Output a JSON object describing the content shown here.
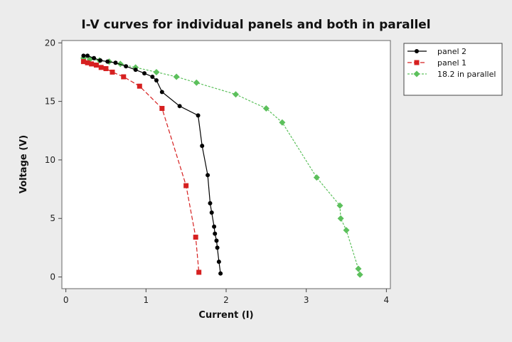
{
  "chart_data": {
    "type": "line",
    "title": "I-V curves for individual panels and both in parallel",
    "xlabel": "Current (I)",
    "ylabel": "Voltage (V)",
    "xlim": [
      -0.05,
      4.05
    ],
    "ylim": [
      -1,
      20.2
    ],
    "xticks": [
      0,
      1,
      2,
      3,
      4
    ],
    "yticks": [
      0,
      5,
      10,
      15,
      20
    ],
    "grid": false,
    "legend_position": "top-right outside plot",
    "series": [
      {
        "name": "panel 2",
        "color": "#000000",
        "marker": "circle",
        "dash": "solid",
        "points": [
          [
            0.22,
            18.9
          ],
          [
            0.27,
            18.9
          ],
          [
            0.35,
            18.7
          ],
          [
            0.43,
            18.5
          ],
          [
            0.52,
            18.4
          ],
          [
            0.62,
            18.3
          ],
          [
            0.75,
            18.0
          ],
          [
            0.87,
            17.7
          ],
          [
            0.98,
            17.4
          ],
          [
            1.08,
            17.1
          ],
          [
            1.13,
            16.8
          ],
          [
            1.2,
            15.8
          ],
          [
            1.42,
            14.6
          ],
          [
            1.65,
            13.8
          ],
          [
            1.7,
            11.2
          ],
          [
            1.77,
            8.7
          ],
          [
            1.8,
            6.3
          ],
          [
            1.82,
            5.5
          ],
          [
            1.85,
            4.3
          ],
          [
            1.86,
            3.7
          ],
          [
            1.88,
            3.1
          ],
          [
            1.89,
            2.5
          ],
          [
            1.91,
            1.3
          ],
          [
            1.93,
            0.3
          ]
        ]
      },
      {
        "name": "panel 1",
        "color": "#d62020",
        "marker": "square",
        "dash": "dashed",
        "points": [
          [
            0.22,
            18.4
          ],
          [
            0.27,
            18.3
          ],
          [
            0.32,
            18.2
          ],
          [
            0.38,
            18.1
          ],
          [
            0.44,
            17.9
          ],
          [
            0.5,
            17.8
          ],
          [
            0.58,
            17.5
          ],
          [
            0.72,
            17.1
          ],
          [
            0.92,
            16.3
          ],
          [
            1.2,
            14.4
          ],
          [
            1.5,
            7.8
          ],
          [
            1.62,
            3.4
          ],
          [
            1.66,
            0.4
          ]
        ]
      },
      {
        "name": "18.2 in parallel",
        "color": "#5cc05c",
        "marker": "diamond",
        "dash": "dashed",
        "points": [
          [
            0.22,
            18.7
          ],
          [
            0.3,
            18.6
          ],
          [
            0.42,
            18.5
          ],
          [
            0.54,
            18.4
          ],
          [
            0.68,
            18.2
          ],
          [
            0.87,
            17.9
          ],
          [
            1.13,
            17.5
          ],
          [
            1.38,
            17.1
          ],
          [
            1.63,
            16.6
          ],
          [
            2.12,
            15.6
          ],
          [
            2.5,
            14.4
          ],
          [
            2.7,
            13.2
          ],
          [
            3.13,
            8.5
          ],
          [
            3.42,
            6.1
          ],
          [
            3.43,
            5.0
          ],
          [
            3.5,
            4.0
          ],
          [
            3.65,
            0.7
          ],
          [
            3.67,
            0.2
          ]
        ]
      }
    ]
  }
}
